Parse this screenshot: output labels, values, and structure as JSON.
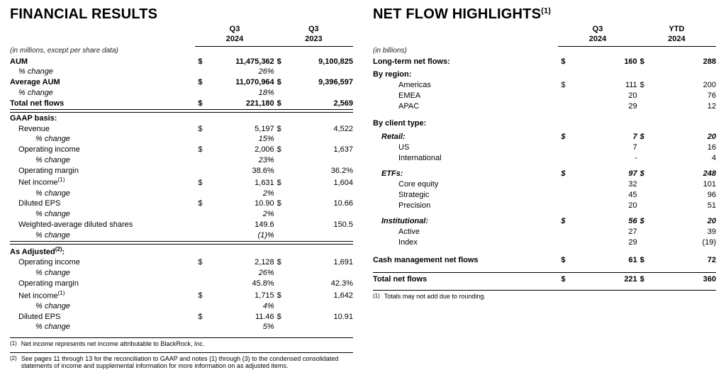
{
  "left": {
    "title": "FINANCIAL RESULTS",
    "subhead": "(in millions, except per share data)",
    "periods": [
      {
        "top": "Q3",
        "bot": "2024"
      },
      {
        "top": "Q3",
        "bot": "2023"
      }
    ],
    "rows": [
      {
        "label": "AUM",
        "bold": true,
        "d1": "$",
        "v1": "11,475,362",
        "d2": "$",
        "v2": "9,100,825"
      },
      {
        "label": "% change",
        "indent": 1,
        "ital": true,
        "v1": "26%"
      },
      {
        "label": "Average AUM",
        "bold": true,
        "d1": "$",
        "v1": "11,070,964",
        "d2": "$",
        "v2": "9,396,597"
      },
      {
        "label": "% change",
        "indent": 1,
        "ital": true,
        "v1": "18%"
      },
      {
        "label": "Total net flows",
        "bold": true,
        "d1": "$",
        "v1": "221,180",
        "d2": "$",
        "v2": "2,569",
        "hr": true
      }
    ],
    "gaap_title": "GAAP basis:",
    "gaap_rows": [
      {
        "label": "Revenue",
        "indent": 1,
        "d1": "$",
        "v1": "5,197",
        "d2": "$",
        "v2": "4,522"
      },
      {
        "label": "% change",
        "indent": 2,
        "ital": true,
        "v1": "15%"
      },
      {
        "label": "Operating income",
        "indent": 1,
        "d1": "$",
        "v1": "2,006",
        "d2": "$",
        "v2": "1,637"
      },
      {
        "label": "% change",
        "indent": 2,
        "ital": true,
        "v1": "23%"
      },
      {
        "label": "Operating margin",
        "indent": 1,
        "v1": "38.6%",
        "v2": "36.2%"
      },
      {
        "label": "Net income",
        "indent": 1,
        "fn": "(1)",
        "d1": "$",
        "v1": "1,631",
        "d2": "$",
        "v2": "1,604"
      },
      {
        "label": "% change",
        "indent": 2,
        "ital": true,
        "v1": "2%"
      },
      {
        "label": "Diluted EPS",
        "indent": 1,
        "d1": "$",
        "v1": "10.90",
        "d2": "$",
        "v2": "10.66"
      },
      {
        "label": "% change",
        "indent": 2,
        "ital": true,
        "v1": "2%"
      },
      {
        "label": "Weighted-average diluted shares",
        "indent": 1,
        "v1": "149.6",
        "v2": "150.5"
      },
      {
        "label": "% change",
        "indent": 2,
        "ital": true,
        "v1": "(1)%",
        "hr": true
      }
    ],
    "adj_title": "As Adjusted",
    "adj_fn": "(2)",
    "adj_suffix": ":",
    "adj_rows": [
      {
        "label": "Operating income",
        "indent": 1,
        "d1": "$",
        "v1": "2,128",
        "d2": "$",
        "v2": "1,691"
      },
      {
        "label": "% change",
        "indent": 2,
        "ital": true,
        "v1": "26%"
      },
      {
        "label": "Operating margin",
        "indent": 1,
        "v1": "45.8%",
        "v2": "42.3%"
      },
      {
        "label": "Net income",
        "indent": 1,
        "fn": "(1)",
        "d1": "$",
        "v1": "1,715",
        "d2": "$",
        "v2": "1,642"
      },
      {
        "label": "% change",
        "indent": 2,
        "ital": true,
        "v1": "4%"
      },
      {
        "label": "Diluted EPS",
        "indent": 1,
        "d1": "$",
        "v1": "11.46",
        "d2": "$",
        "v2": "10.91"
      },
      {
        "label": "% change",
        "indent": 2,
        "ital": true,
        "v1": "5%"
      }
    ],
    "footnotes": [
      {
        "n": "(1)",
        "t": "Net income represents net income attributable to BlackRock, Inc."
      },
      {
        "n": "(2)",
        "t": "See pages 11 through 13 for the reconciliation to GAAP and notes (1) through (3) to the condensed consolidated statements of income and supplemental information for more information on as adjusted items."
      }
    ]
  },
  "right": {
    "title": "NET FLOW HIGHLIGHTS",
    "title_fn": "(1)",
    "subhead": "(in billions)",
    "periods": [
      {
        "top": "Q3",
        "bot": "2024"
      },
      {
        "top": "YTD",
        "bot": "2024"
      }
    ],
    "ltf_label": "Long-term net flows:",
    "ltf": {
      "d1": "$",
      "v1": "160",
      "d2": "$",
      "v2": "288"
    },
    "region_title": "By region:",
    "region_rows": [
      {
        "label": "Americas",
        "indent": 2,
        "d1": "$",
        "v1": "111",
        "d2": "$",
        "v2": "200"
      },
      {
        "label": "EMEA",
        "indent": 2,
        "v1": "20",
        "v2": "76"
      },
      {
        "label": "APAC",
        "indent": 2,
        "v1": "29",
        "v2": "12"
      }
    ],
    "client_title": "By client type:",
    "groups": [
      {
        "head": "Retail:",
        "d1": "$",
        "v1": "7",
        "d2": "$",
        "v2": "20",
        "rows": [
          {
            "label": "US",
            "v1": "7",
            "v2": "16"
          },
          {
            "label": "International",
            "v1": "-",
            "v2": "4"
          }
        ]
      },
      {
        "head": "ETFs:",
        "d1": "$",
        "v1": "97",
        "d2": "$",
        "v2": "248",
        "rows": [
          {
            "label": "Core equity",
            "v1": "32",
            "v2": "101"
          },
          {
            "label": "Strategic",
            "v1": "45",
            "v2": "96"
          },
          {
            "label": "Precision",
            "v1": "20",
            "v2": "51"
          }
        ]
      },
      {
        "head": "Institutional:",
        "d1": "$",
        "v1": "56",
        "d2": "$",
        "v2": "20",
        "rows": [
          {
            "label": "Active",
            "v1": "27",
            "v2": "39"
          },
          {
            "label": "Index",
            "v1": "29",
            "v2": "(19)"
          }
        ]
      }
    ],
    "cash_label": "Cash management net flows",
    "cash": {
      "d1": "$",
      "v1": "61",
      "d2": "$",
      "v2": "72"
    },
    "total_label": "Total net flows",
    "total": {
      "d1": "$",
      "v1": "221",
      "d2": "$",
      "v2": "360"
    },
    "footnotes": [
      {
        "n": "(1)",
        "t": "Totals may not add due to rounding."
      }
    ]
  }
}
